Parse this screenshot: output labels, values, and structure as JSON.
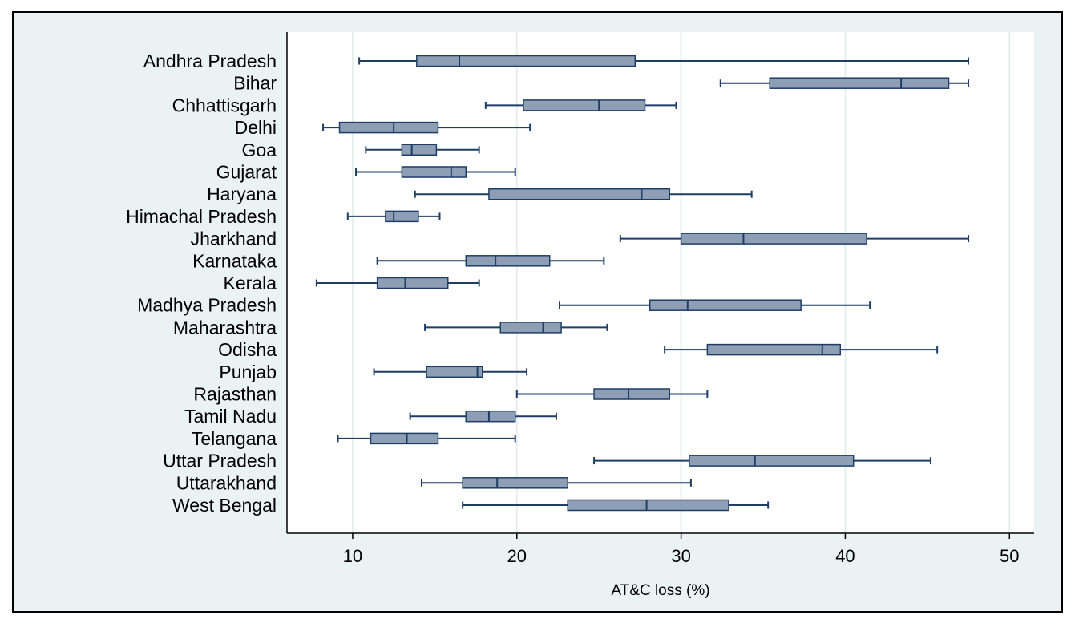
{
  "chart_data": {
    "type": "boxplot",
    "orientation": "horizontal",
    "xlabel": "AT&C loss (%)",
    "xlim": [
      6,
      51.5
    ],
    "xticks": [
      10,
      20,
      30,
      40,
      50
    ],
    "grid": "vertical",
    "colors": {
      "box": "#8e9fb5",
      "line": "#1f3e66",
      "background": "#eaf2f3",
      "plot_bg": "#ffffff",
      "grid": "#e6eeef"
    },
    "series": [
      {
        "category": "Andhra Pradesh",
        "min": 10.4,
        "q1": 13.9,
        "median": 16.5,
        "q3": 27.2,
        "max": 47.5
      },
      {
        "category": "Bihar",
        "min": 32.4,
        "q1": 35.4,
        "median": 43.4,
        "q3": 46.3,
        "max": 47.5
      },
      {
        "category": "Chhattisgarh",
        "min": 18.1,
        "q1": 20.4,
        "median": 25.0,
        "q3": 27.8,
        "max": 29.7
      },
      {
        "category": "Delhi",
        "min": 8.2,
        "q1": 9.2,
        "median": 12.5,
        "q3": 15.2,
        "max": 20.8
      },
      {
        "category": "Goa",
        "min": 10.8,
        "q1": 13.0,
        "median": 13.6,
        "q3": 15.1,
        "max": 17.7
      },
      {
        "category": "Gujarat",
        "min": 10.2,
        "q1": 13.0,
        "median": 16.0,
        "q3": 16.9,
        "max": 19.9
      },
      {
        "category": "Haryana",
        "min": 13.8,
        "q1": 18.3,
        "median": 27.6,
        "q3": 29.3,
        "max": 34.3
      },
      {
        "category": "Himachal Pradesh",
        "min": 9.7,
        "q1": 12.0,
        "median": 12.5,
        "q3": 14.0,
        "max": 15.3
      },
      {
        "category": "Jharkhand",
        "min": 26.3,
        "q1": 30.0,
        "median": 33.8,
        "q3": 41.3,
        "max": 47.5
      },
      {
        "category": "Karnataka",
        "min": 11.5,
        "q1": 16.9,
        "median": 18.7,
        "q3": 22.0,
        "max": 25.3
      },
      {
        "category": "Kerala",
        "min": 7.8,
        "q1": 11.5,
        "median": 13.2,
        "q3": 15.8,
        "max": 17.7
      },
      {
        "category": "Madhya Pradesh",
        "min": 22.6,
        "q1": 28.1,
        "median": 30.4,
        "q3": 37.3,
        "max": 41.5
      },
      {
        "category": "Maharashtra",
        "min": 14.4,
        "q1": 19.0,
        "median": 21.6,
        "q3": 22.7,
        "max": 25.5
      },
      {
        "category": "Odisha",
        "min": 29.0,
        "q1": 31.6,
        "median": 38.6,
        "q3": 39.7,
        "max": 45.6
      },
      {
        "category": "Punjab",
        "min": 11.3,
        "q1": 14.5,
        "median": 17.6,
        "q3": 17.9,
        "max": 20.6
      },
      {
        "category": "Rajasthan",
        "min": 20.0,
        "q1": 24.7,
        "median": 26.8,
        "q3": 29.3,
        "max": 31.6
      },
      {
        "category": "Tamil Nadu",
        "min": 13.5,
        "q1": 16.9,
        "median": 18.3,
        "q3": 19.9,
        "max": 22.4
      },
      {
        "category": "Telangana",
        "min": 9.1,
        "q1": 11.1,
        "median": 13.3,
        "q3": 15.2,
        "max": 19.9
      },
      {
        "category": "Uttar Pradesh",
        "min": 24.7,
        "q1": 30.5,
        "median": 34.5,
        "q3": 40.5,
        "max": 45.2
      },
      {
        "category": "Uttarakhand",
        "min": 14.2,
        "q1": 16.7,
        "median": 18.8,
        "q3": 23.1,
        "max": 30.6
      },
      {
        "category": "West Bengal",
        "min": 16.7,
        "q1": 23.1,
        "median": 27.9,
        "q3": 32.9,
        "max": 35.3
      }
    ]
  }
}
